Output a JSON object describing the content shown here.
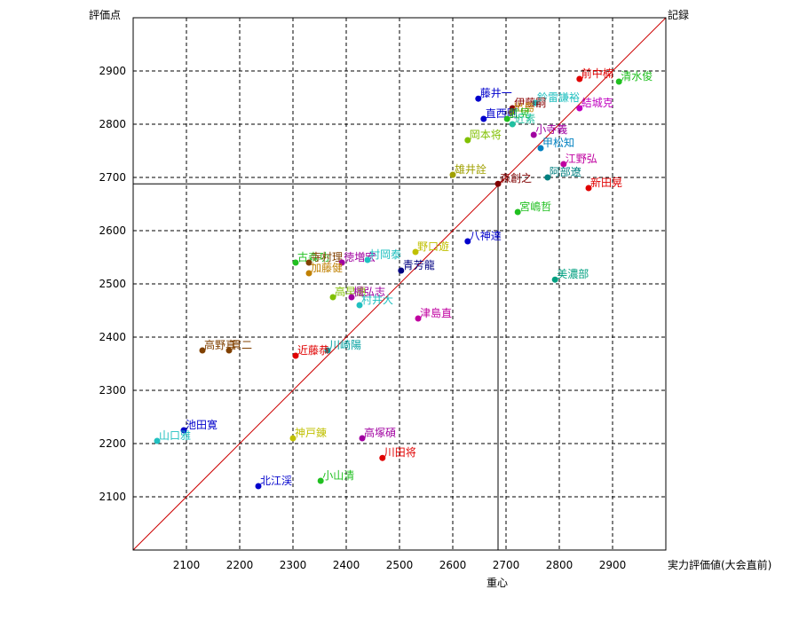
{
  "chart_data": {
    "type": "scatter",
    "ylabel": "評価点",
    "xlabel": "実力評価値(大会直前)",
    "corner_label": "記録",
    "center_label": "重心",
    "xlim": [
      2000,
      3000
    ],
    "ylim": [
      2000,
      3000
    ],
    "x_ticks": [
      2100,
      2200,
      2300,
      2400,
      2500,
      2600,
      2700,
      2800,
      2900
    ],
    "y_ticks": [
      2100,
      2200,
      2300,
      2400,
      2500,
      2600,
      2700,
      2800,
      2900
    ],
    "grid": true,
    "diagonal": true,
    "center": {
      "x": 2685,
      "y": 2688
    },
    "points": [
      {
        "label": "前中楠",
        "x": 2838,
        "y": 2885,
        "color": "#e00000"
      },
      {
        "label": "清水俊",
        "x": 2912,
        "y": 2880,
        "color": "#20c020"
      },
      {
        "label": "藤井一",
        "x": 2648,
        "y": 2848,
        "color": "#0000cc"
      },
      {
        "label": "鈴雷謙裕",
        "x": 2755,
        "y": 2840,
        "color": "#20c0c0"
      },
      {
        "label": "伊藤嗣",
        "x": 2712,
        "y": 2830,
        "color": "#8b0000"
      },
      {
        "label": "結城克",
        "x": 2838,
        "y": 2830,
        "color": "#c000c0"
      },
      {
        "label": "出島",
        "x": 2710,
        "y": 2822,
        "color": "#c08000"
      },
      {
        "label": "直西剛",
        "x": 2658,
        "y": 2810,
        "color": "#0000cc"
      },
      {
        "label": "武晃",
        "x": 2702,
        "y": 2810,
        "color": "#20c020"
      },
      {
        "label": "近素",
        "x": 2712,
        "y": 2800,
        "color": "#20c0a0"
      },
      {
        "label": "小寺義",
        "x": 2752,
        "y": 2780,
        "color": "#a000a0"
      },
      {
        "label": "岡本将",
        "x": 2628,
        "y": 2770,
        "color": "#80c000"
      },
      {
        "label": "甲松知",
        "x": 2765,
        "y": 2755,
        "color": "#0080c0"
      },
      {
        "label": "江野弘",
        "x": 2808,
        "y": 2725,
        "color": "#c000a0"
      },
      {
        "label": "雄井詮",
        "x": 2600,
        "y": 2705,
        "color": "#a0a000"
      },
      {
        "label": "阿部遼",
        "x": 2778,
        "y": 2700,
        "color": "#008080"
      },
      {
        "label": "森創之",
        "x": 2685,
        "y": 2688,
        "color": "#800000"
      },
      {
        "label": "新田晃",
        "x": 2855,
        "y": 2680,
        "color": "#e00000"
      },
      {
        "label": "宮嶋哲",
        "x": 2722,
        "y": 2635,
        "color": "#20c020"
      },
      {
        "label": "八神達",
        "x": 2628,
        "y": 2580,
        "color": "#0000cc"
      },
      {
        "label": "野口遊",
        "x": 2530,
        "y": 2560,
        "color": "#c0c000"
      },
      {
        "label": "古森功",
        "x": 2305,
        "y": 2540,
        "color": "#20c020"
      },
      {
        "label": "寺村理",
        "x": 2330,
        "y": 2540,
        "color": "#804000"
      },
      {
        "label": "徳増宏",
        "x": 2392,
        "y": 2540,
        "color": "#a000a0"
      },
      {
        "label": "村岡泰",
        "x": 2440,
        "y": 2545,
        "color": "#20c0c0"
      },
      {
        "label": "青芳龍",
        "x": 2503,
        "y": 2525,
        "color": "#000080"
      },
      {
        "label": "加藤健",
        "x": 2330,
        "y": 2520,
        "color": "#c08000"
      },
      {
        "label": "美濃部",
        "x": 2792,
        "y": 2508,
        "color": "#00a080"
      },
      {
        "label": "高早惠",
        "x": 2375,
        "y": 2475,
        "color": "#80c000"
      },
      {
        "label": "楓弘志",
        "x": 2410,
        "y": 2475,
        "color": "#a000a0"
      },
      {
        "label": "村井大",
        "x": 2425,
        "y": 2460,
        "color": "#20c0c0"
      },
      {
        "label": "津島直",
        "x": 2535,
        "y": 2435,
        "color": "#c000a0"
      },
      {
        "label": "高野真",
        "x": 2130,
        "y": 2375,
        "color": "#804000"
      },
      {
        "label": "貫二",
        "x": 2180,
        "y": 2375,
        "color": "#804000"
      },
      {
        "label": "川崎陽",
        "x": 2365,
        "y": 2375,
        "color": "#00a0a0"
      },
      {
        "label": "近藤恭",
        "x": 2305,
        "y": 2365,
        "color": "#e00000"
      },
      {
        "label": "池田寛",
        "x": 2095,
        "y": 2225,
        "color": "#0000cc"
      },
      {
        "label": "山口雅",
        "x": 2045,
        "y": 2205,
        "color": "#20c0c0"
      },
      {
        "label": "神戸錬",
        "x": 2300,
        "y": 2210,
        "color": "#c0c000"
      },
      {
        "label": "高塚碩",
        "x": 2430,
        "y": 2210,
        "color": "#a000a0"
      },
      {
        "label": "川田将",
        "x": 2468,
        "y": 2173,
        "color": "#e00000"
      },
      {
        "label": "小山清",
        "x": 2352,
        "y": 2130,
        "color": "#20c020"
      },
      {
        "label": "北江渓",
        "x": 2235,
        "y": 2120,
        "color": "#0000cc"
      }
    ]
  }
}
